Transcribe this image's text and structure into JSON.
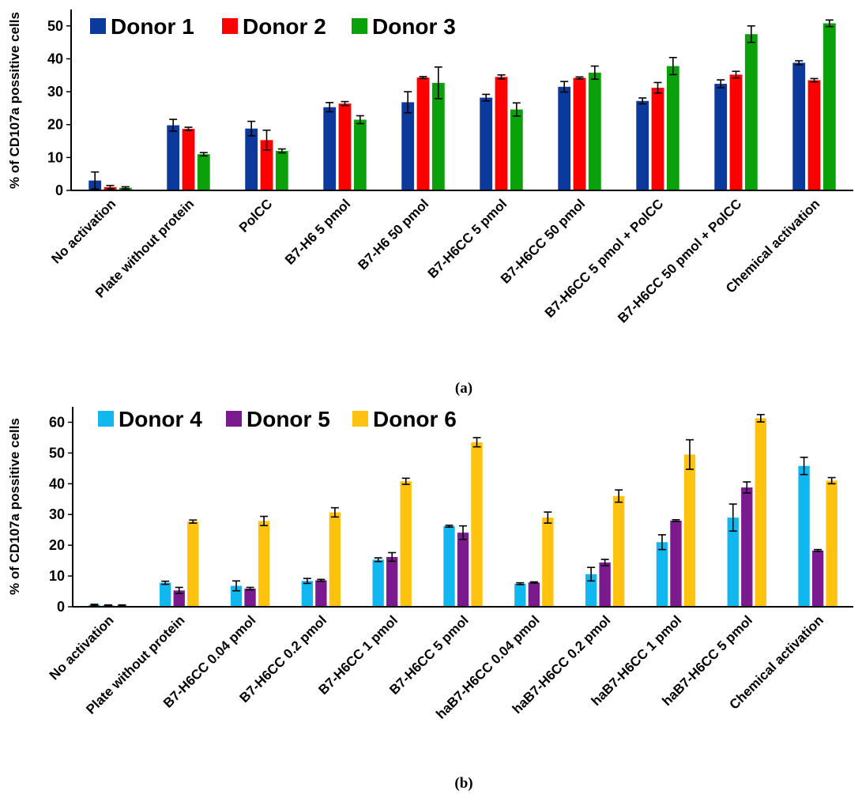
{
  "chart_data": [
    {
      "type": "bar",
      "panel_label": "(a)",
      "ylabel": "% of CD107a possitive cells",
      "ylim": [
        0,
        55
      ],
      "yticks": [
        0,
        10,
        20,
        30,
        40,
        50
      ],
      "legend_position": "top-left",
      "categories": [
        "No activation",
        "Plate without protein",
        "PolCC",
        "B7-H6 5 pmol",
        "B7-H6  50 pmol",
        "B7-H6CC  5 pmol",
        "B7-H6CC 50 pmol",
        "B7-H6CC 5 pmol + PolCC",
        "B7-H6CC 50 pmol + PolCC",
        "Chemical activation"
      ],
      "series": [
        {
          "name": "Donor 1",
          "color": "#0c3a9c",
          "values": [
            3.0,
            19.8,
            18.8,
            25.3,
            26.8,
            28.2,
            31.5,
            27.2,
            32.4,
            38.8
          ],
          "errors": [
            2.6,
            1.8,
            2.2,
            1.4,
            3.2,
            1.0,
            1.6,
            0.9,
            1.2,
            0.6
          ]
        },
        {
          "name": "Donor 2",
          "color": "#ff0000",
          "values": [
            1.0,
            18.7,
            15.3,
            26.4,
            34.3,
            34.5,
            34.2,
            31.2,
            35.2,
            33.5
          ],
          "errors": [
            0.5,
            0.5,
            3.0,
            0.6,
            0.3,
            0.6,
            0.3,
            1.6,
            1.0,
            0.5
          ]
        },
        {
          "name": "Donor 3",
          "color": "#0aa10a",
          "values": [
            0.8,
            11.0,
            12.0,
            21.5,
            32.7,
            24.6,
            35.8,
            37.8,
            47.5,
            50.8
          ],
          "errors": [
            0.3,
            0.5,
            0.6,
            1.2,
            4.8,
            2.0,
            2.0,
            2.6,
            2.5,
            1.0
          ]
        }
      ]
    },
    {
      "type": "bar",
      "panel_label": "(b)",
      "ylabel": "% of CD107a possitive cells",
      "ylim": [
        0,
        65
      ],
      "yticks": [
        0,
        10,
        20,
        30,
        40,
        50,
        60
      ],
      "legend_position": "top-left",
      "categories": [
        "No activation",
        "Plate without protein",
        "B7-H6CC 0.04 pmol",
        "B7-H6CC 0.2 pmol",
        "B7-H6CC 1 pmol",
        "B7-H6CC 5 pmol",
        "haB7-H6CC 0.04 pmol",
        "haB7-H6CC 0.2 pmol",
        "haB7-H6CC 1 pmol",
        "haB7-H6CC 5 pmol",
        "Chemical activation"
      ],
      "series": [
        {
          "name": "Donor 4",
          "color": "#11b8f0",
          "values": [
            0.6,
            7.8,
            6.8,
            8.4,
            15.3,
            26.2,
            7.5,
            10.6,
            21.0,
            29.0,
            45.8
          ],
          "errors": [
            0.2,
            0.5,
            1.6,
            0.8,
            0.6,
            0.3,
            0.3,
            2.2,
            2.4,
            4.4,
            2.8
          ]
        },
        {
          "name": "Donor 5",
          "color": "#7a1a8e",
          "values": [
            0.4,
            5.3,
            5.9,
            8.6,
            16.2,
            24.1,
            7.9,
            14.4,
            28.0,
            38.8,
            18.3
          ],
          "errors": [
            0.2,
            1.0,
            0.4,
            0.3,
            1.4,
            2.2,
            0.2,
            1.0,
            0.3,
            1.8,
            0.3
          ]
        },
        {
          "name": "Donor 6",
          "color": "#ffc20e",
          "values": [
            0.4,
            27.7,
            27.9,
            30.7,
            40.8,
            53.5,
            29.0,
            36.0,
            49.5,
            61.3,
            41.0
          ],
          "errors": [
            0.2,
            0.5,
            1.5,
            1.5,
            1.0,
            1.5,
            1.8,
            2.0,
            4.8,
            1.2,
            1.0
          ]
        }
      ]
    }
  ]
}
